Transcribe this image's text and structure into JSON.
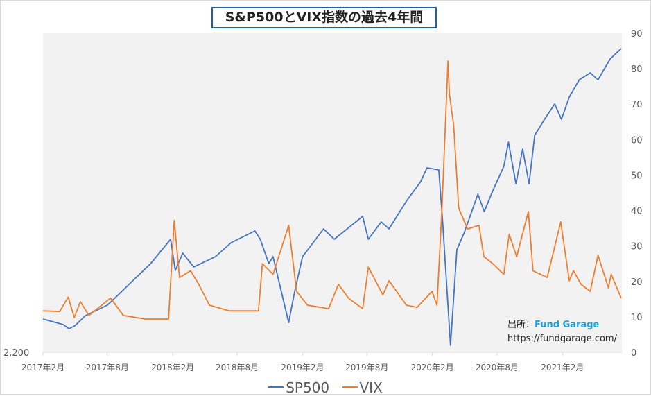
{
  "chart_data": {
    "type": "line",
    "title": "S&P500とVIX指数の過去4年間",
    "xlabel": "",
    "ylabel": "",
    "x_range": [
      "2017-02-01",
      "2021-07-18"
    ],
    "x_tick_labels": [
      "2017年2月",
      "2017年8月",
      "2018年2月",
      "2018年8月",
      "2019年2月",
      "2019年8月",
      "2020年2月",
      "2020年8月",
      "2021年2月"
    ],
    "x_tick_dates": [
      "2017-02-01",
      "2017-08-01",
      "2018-02-01",
      "2018-08-01",
      "2019-02-01",
      "2019-08-01",
      "2020-02-01",
      "2020-08-01",
      "2021-02-01"
    ],
    "y_left": {
      "range": [
        2200,
        4500
      ],
      "tick_labels": [
        "2,200"
      ]
    },
    "y_right": {
      "range": [
        0,
        90
      ],
      "tick_labels": [
        "0",
        "10",
        "20",
        "30",
        "40",
        "50",
        "60",
        "70",
        "80",
        "90"
      ]
    },
    "grid": false,
    "legend_position": "bottom",
    "series": [
      {
        "name": "SP500",
        "axis": "left",
        "color": "#4472c4",
        "points": [
          [
            "2017-02-01",
            2440
          ],
          [
            "2017-03-30",
            2400
          ],
          [
            "2017-04-15",
            2370
          ],
          [
            "2017-05-01",
            2390
          ],
          [
            "2017-06-01",
            2465
          ],
          [
            "2017-08-01",
            2540
          ],
          [
            "2017-09-01",
            2615
          ],
          [
            "2017-10-01",
            2690
          ],
          [
            "2017-12-01",
            2840
          ],
          [
            "2018-01-26",
            3015
          ],
          [
            "2018-02-08",
            2790
          ],
          [
            "2018-03-01",
            2915
          ],
          [
            "2018-04-01",
            2815
          ],
          [
            "2018-06-01",
            2890
          ],
          [
            "2018-07-15",
            2990
          ],
          [
            "2018-09-20",
            3075
          ],
          [
            "2018-10-05",
            3015
          ],
          [
            "2018-10-29",
            2840
          ],
          [
            "2018-11-10",
            2890
          ],
          [
            "2018-12-24",
            2415
          ],
          [
            "2019-01-10",
            2640
          ],
          [
            "2019-02-01",
            2890
          ],
          [
            "2019-04-01",
            3090
          ],
          [
            "2019-05-01",
            3015
          ],
          [
            "2019-07-20",
            3180
          ],
          [
            "2019-08-05",
            3015
          ],
          [
            "2019-09-10",
            3140
          ],
          [
            "2019-10-02",
            3090
          ],
          [
            "2019-11-20",
            3290
          ],
          [
            "2019-12-30",
            3430
          ],
          [
            "2020-01-17",
            3530
          ],
          [
            "2020-02-19",
            3515
          ],
          [
            "2020-03-01",
            3140
          ],
          [
            "2020-03-23",
            2250
          ],
          [
            "2020-04-10",
            2940
          ],
          [
            "2020-05-01",
            3065
          ],
          [
            "2020-06-08",
            3340
          ],
          [
            "2020-06-26",
            3215
          ],
          [
            "2020-07-20",
            3365
          ],
          [
            "2020-08-20",
            3540
          ],
          [
            "2020-09-02",
            3715
          ],
          [
            "2020-09-23",
            3415
          ],
          [
            "2020-10-12",
            3665
          ],
          [
            "2020-10-30",
            3415
          ],
          [
            "2020-11-15",
            3765
          ],
          [
            "2020-12-15",
            3890
          ],
          [
            "2021-01-10",
            3990
          ],
          [
            "2021-01-29",
            3880
          ],
          [
            "2021-02-20",
            4040
          ],
          [
            "2021-03-20",
            4165
          ],
          [
            "2021-04-20",
            4215
          ],
          [
            "2021-05-12",
            4165
          ],
          [
            "2021-06-15",
            4315
          ],
          [
            "2021-07-16",
            4390
          ]
        ]
      },
      {
        "name": "VIX",
        "axis": "right",
        "color": "#ed7d31",
        "points": [
          [
            "2017-02-01",
            11.7
          ],
          [
            "2017-03-20",
            11.5
          ],
          [
            "2017-04-13",
            15.6
          ],
          [
            "2017-04-30",
            9.8
          ],
          [
            "2017-05-17",
            14.3
          ],
          [
            "2017-06-10",
            10.4
          ],
          [
            "2017-08-10",
            15.3
          ],
          [
            "2017-09-15",
            10.4
          ],
          [
            "2017-11-15",
            9.4
          ],
          [
            "2018-01-20",
            9.4
          ],
          [
            "2018-02-05",
            37.2
          ],
          [
            "2018-02-20",
            21.1
          ],
          [
            "2018-03-23",
            23
          ],
          [
            "2018-04-15",
            19.2
          ],
          [
            "2018-05-15",
            13.3
          ],
          [
            "2018-07-10",
            11.7
          ],
          [
            "2018-09-30",
            11.7
          ],
          [
            "2018-10-11",
            25
          ],
          [
            "2018-11-10",
            22
          ],
          [
            "2018-12-24",
            35.8
          ],
          [
            "2019-01-15",
            17.2
          ],
          [
            "2019-02-15",
            13.3
          ],
          [
            "2019-04-15",
            12.3
          ],
          [
            "2019-05-13",
            19.2
          ],
          [
            "2019-06-10",
            15.3
          ],
          [
            "2019-07-20",
            12.3
          ],
          [
            "2019-08-05",
            24
          ],
          [
            "2019-09-15",
            16.2
          ],
          [
            "2019-10-02",
            20.2
          ],
          [
            "2019-11-20",
            13.3
          ],
          [
            "2019-12-20",
            12.7
          ],
          [
            "2020-01-31",
            17.2
          ],
          [
            "2020-02-14",
            13.3
          ],
          [
            "2020-02-28",
            40.7
          ],
          [
            "2020-03-16",
            82.2
          ],
          [
            "2020-03-20",
            73
          ],
          [
            "2020-04-01",
            64
          ],
          [
            "2020-04-15",
            40.7
          ],
          [
            "2020-05-10",
            34.8
          ],
          [
            "2020-06-11",
            35.8
          ],
          [
            "2020-06-25",
            27
          ],
          [
            "2020-07-20",
            25
          ],
          [
            "2020-08-20",
            22
          ],
          [
            "2020-09-04",
            33.3
          ],
          [
            "2020-09-25",
            27
          ],
          [
            "2020-10-28",
            39.7
          ],
          [
            "2020-11-10",
            23
          ],
          [
            "2020-12-20",
            21.1
          ],
          [
            "2021-01-27",
            36.8
          ],
          [
            "2021-02-20",
            20.2
          ],
          [
            "2021-03-04",
            23
          ],
          [
            "2021-03-25",
            19.2
          ],
          [
            "2021-04-20",
            17.2
          ],
          [
            "2021-05-12",
            27.4
          ],
          [
            "2021-06-10",
            18.2
          ],
          [
            "2021-06-18",
            22
          ],
          [
            "2021-07-16",
            15.3
          ]
        ]
      }
    ]
  },
  "source": {
    "label": "出所：",
    "brand": "Fund Garage",
    "url": "https://fundgarage.com/"
  }
}
